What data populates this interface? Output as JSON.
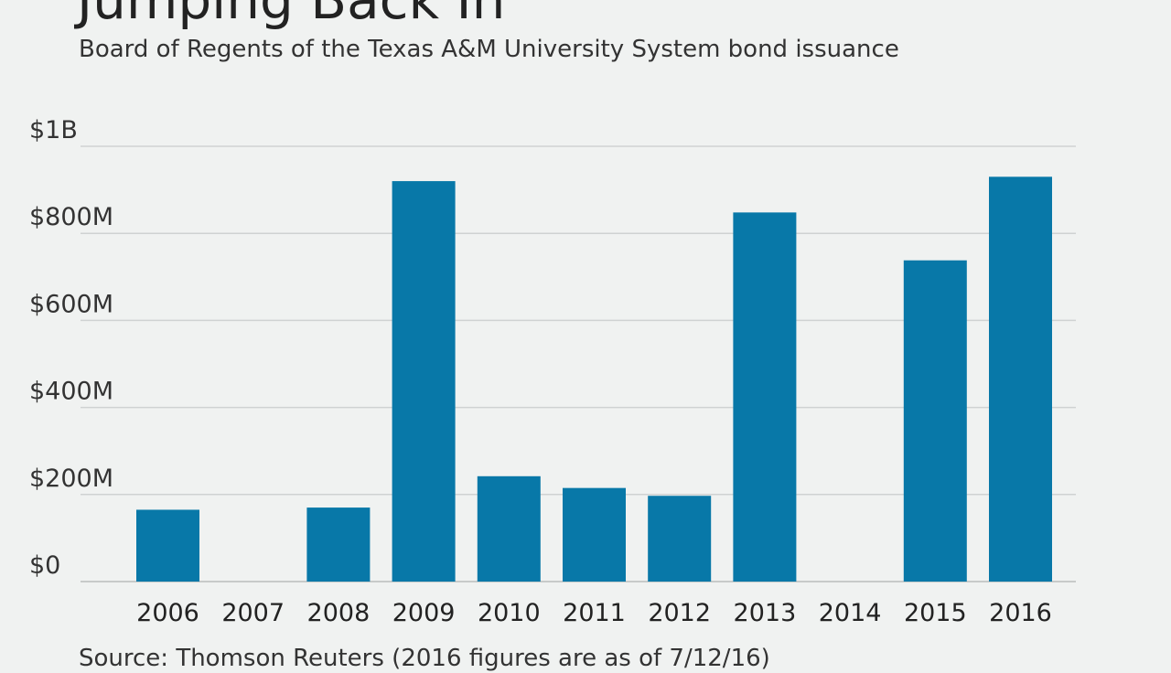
{
  "chart_data": {
    "type": "bar",
    "title": "Jumping Back In",
    "subtitle": "Board of Regents of the Texas A&M University System bond issuance",
    "categories": [
      "2006",
      "2007",
      "2008",
      "2009",
      "2010",
      "2011",
      "2012",
      "2013",
      "2014",
      "2015",
      "2016"
    ],
    "values": [
      165000000,
      0,
      170000000,
      920000000,
      242000000,
      215000000,
      197000000,
      848000000,
      0,
      738000000,
      930000000
    ],
    "y_ticks": [
      0,
      200000000,
      400000000,
      600000000,
      800000000,
      1000000000
    ],
    "y_tick_labels": [
      "$0",
      "$200M",
      "$400M",
      "$600M",
      "$800M",
      "$1B"
    ],
    "ylim": [
      0,
      1000000000
    ],
    "grid": true,
    "bar_color": "#0878a8",
    "source": "Source: Thomson Reuters (2016 figures are as of 7/12/16)"
  }
}
